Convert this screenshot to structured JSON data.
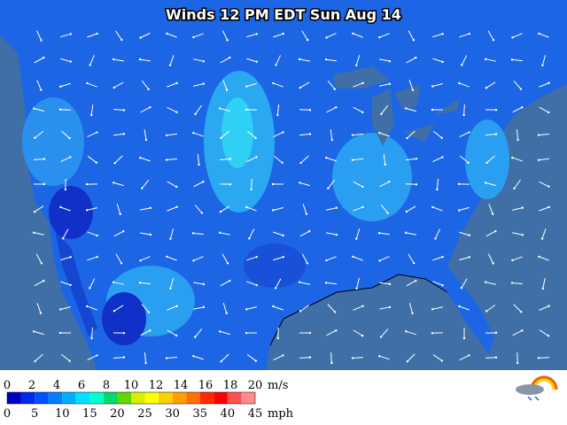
{
  "title": "Winds 12 PM EDT Sun Aug 14",
  "legend": {
    "ms_ticks": [
      0,
      2,
      4,
      6,
      8,
      10,
      12,
      14,
      16,
      18,
      20
    ],
    "ms_unit": "m/s",
    "mph_ticks": [
      0,
      5,
      10,
      15,
      20,
      25,
      30,
      35,
      40,
      45
    ],
    "mph_unit": "mph",
    "colors": [
      "#0000c0",
      "#0028e8",
      "#0050ff",
      "#0080ff",
      "#00b0ff",
      "#00e0ff",
      "#00ffd0",
      "#00d870",
      "#60d800",
      "#d8f000",
      "#ffff00",
      "#ffd000",
      "#ffa000",
      "#ff7000",
      "#ff2a00",
      "#ff0000",
      "#ff5050",
      "#ff8c8c"
    ]
  }
}
